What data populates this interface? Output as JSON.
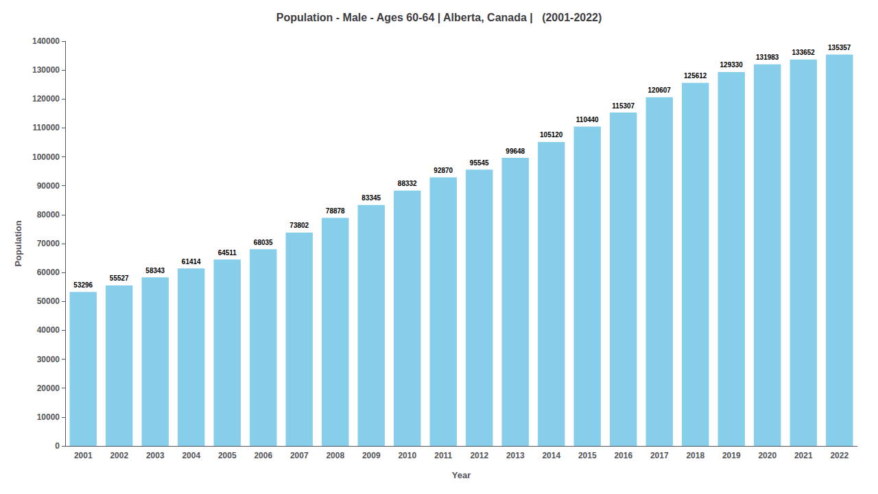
{
  "chart_data": {
    "type": "bar",
    "title": "Population - Male - Ages 60-64 | Alberta, Canada |   (2001-2022)",
    "x_label": "Year",
    "y_label": "Population",
    "categories": [
      "2001",
      "2002",
      "2003",
      "2004",
      "2005",
      "2006",
      "2007",
      "2008",
      "2009",
      "2010",
      "2011",
      "2012",
      "2013",
      "2014",
      "2015",
      "2016",
      "2017",
      "2018",
      "2019",
      "2020",
      "2021",
      "2022"
    ],
    "values": [
      53296,
      55527,
      58343,
      61414,
      64511,
      68035,
      73802,
      78878,
      83345,
      88332,
      92870,
      95545,
      99648,
      105120,
      110440,
      115307,
      120607,
      125612,
      129330,
      131983,
      133652,
      135357
    ],
    "color": "#87CEEB",
    "ylim": [
      0,
      140000
    ],
    "yticks": [
      0,
      10000,
      20000,
      30000,
      40000,
      50000,
      60000,
      70000,
      80000,
      90000,
      100000,
      110000,
      120000,
      130000,
      140000
    ],
    "grid": false,
    "data_labels": true
  }
}
